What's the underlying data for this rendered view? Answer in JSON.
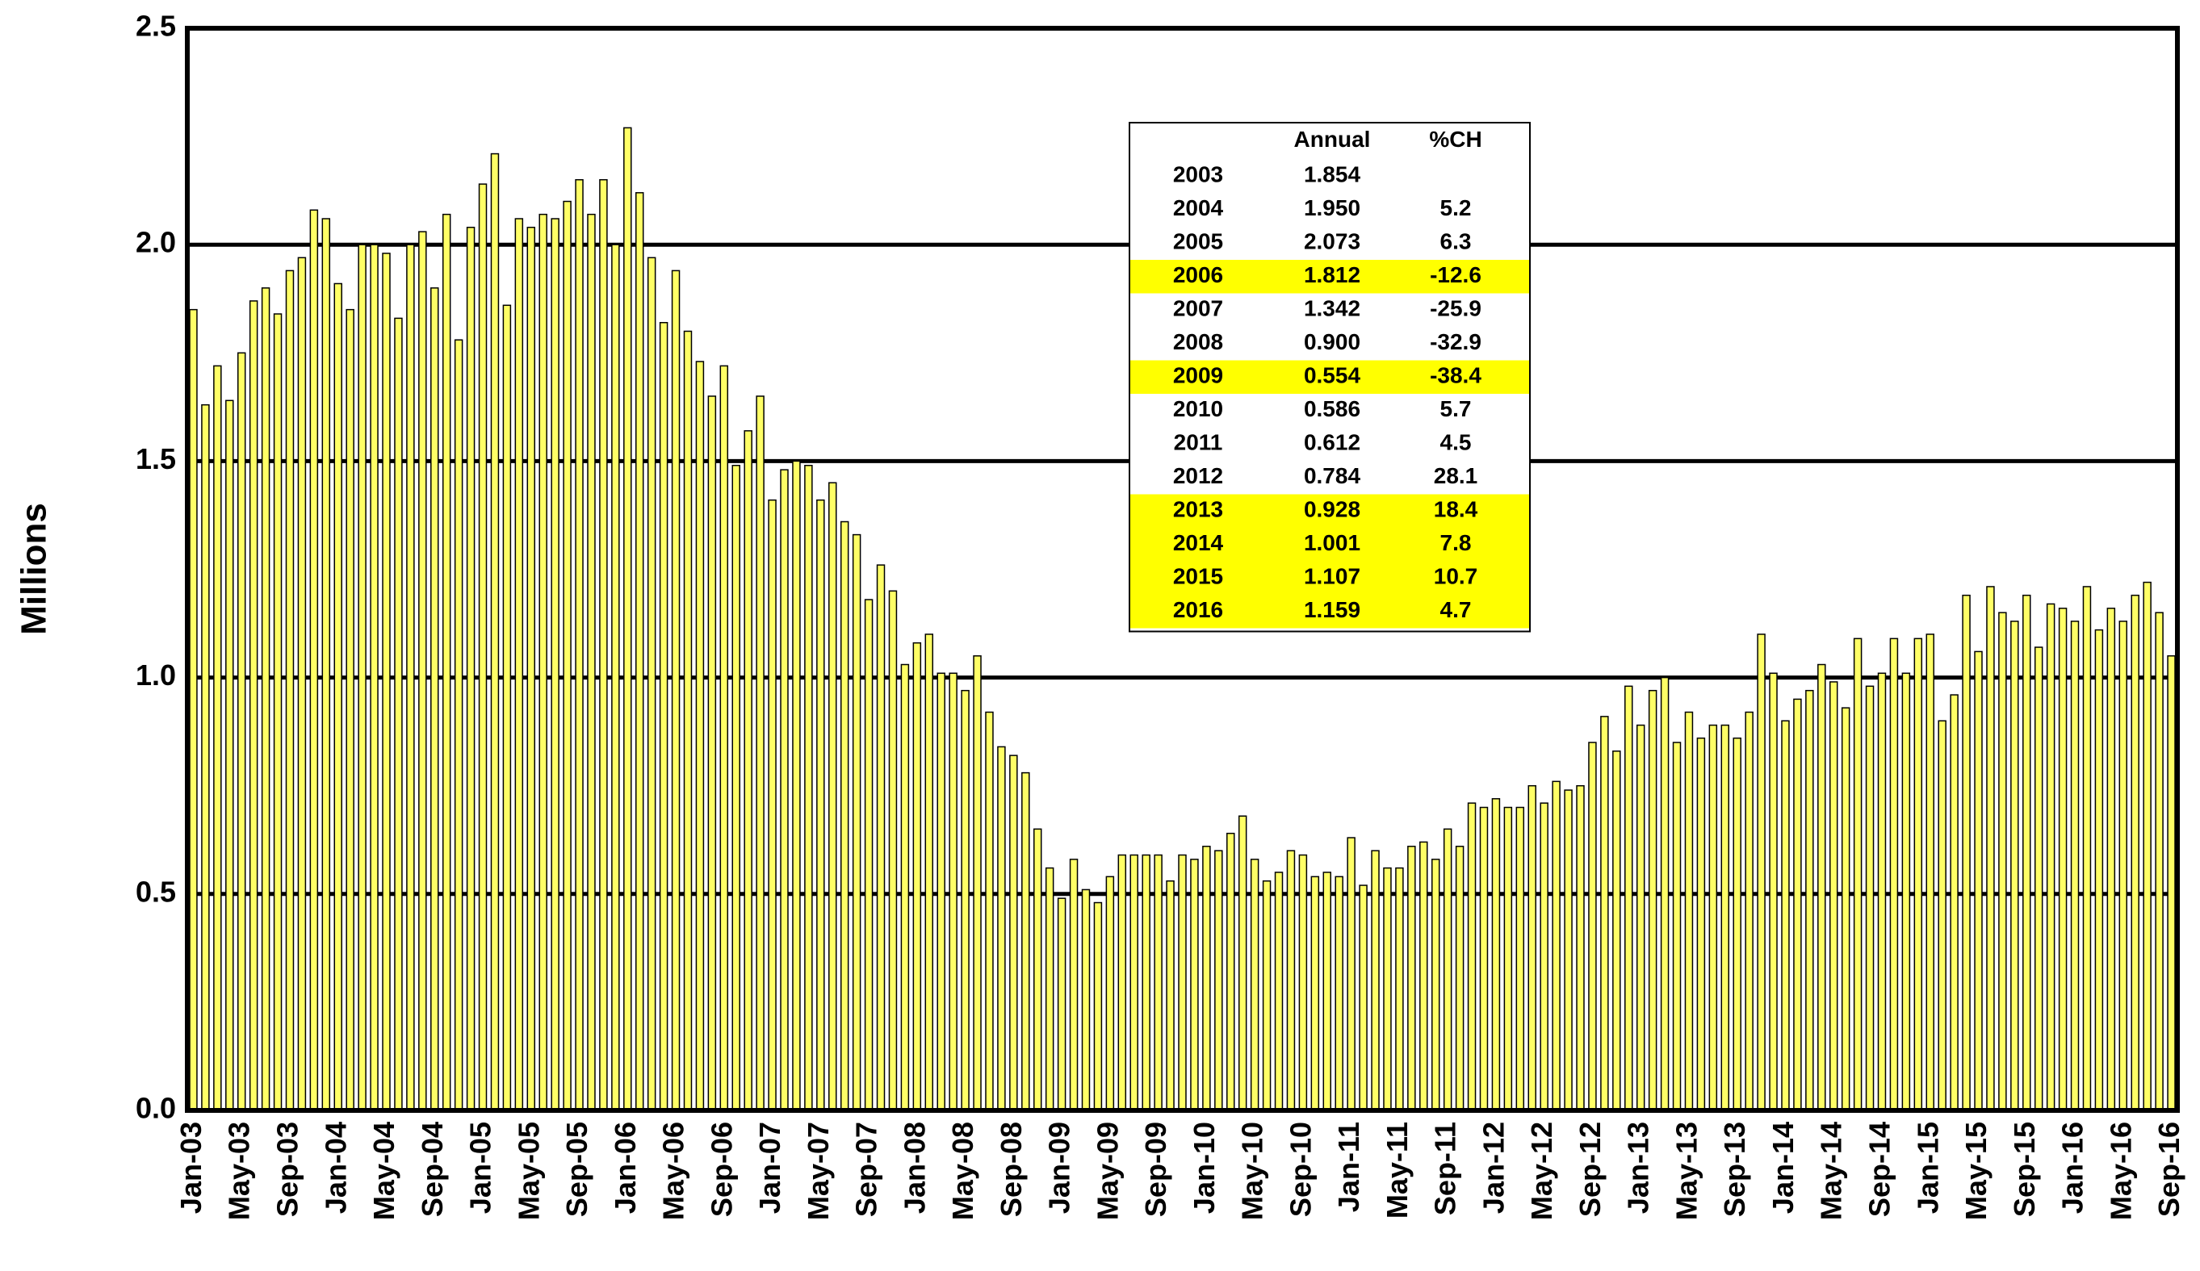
{
  "chart_data": {
    "type": "bar",
    "y_label": "Millions",
    "color": "#ffff66",
    "edge_color": "#000000",
    "grid": true,
    "ylim": [
      0,
      2.5
    ],
    "yticks": [
      {
        "value": 0,
        "label": "0.0"
      },
      {
        "value": 0.5,
        "label": "0.5"
      },
      {
        "value": 1,
        "label": "1.0"
      },
      {
        "value": 1.5,
        "label": "1.5"
      },
      {
        "value": 2,
        "label": "2.0"
      },
      {
        "value": 2.5,
        "label": "2.5"
      }
    ],
    "categories": [
      "Jan-03",
      null,
      null,
      null,
      "May-03",
      null,
      null,
      null,
      "Sep-03",
      null,
      null,
      null,
      "Jan-04",
      null,
      null,
      null,
      "May-04",
      null,
      null,
      null,
      "Sep-04",
      null,
      null,
      null,
      "Jan-05",
      null,
      null,
      null,
      "May-05",
      null,
      null,
      null,
      "Sep-05",
      null,
      null,
      null,
      "Jan-06",
      null,
      null,
      null,
      "May-06",
      null,
      null,
      null,
      "Sep-06",
      null,
      null,
      null,
      "Jan-07",
      null,
      null,
      null,
      "May-07",
      null,
      null,
      null,
      "Sep-07",
      null,
      null,
      null,
      "Jan-08",
      null,
      null,
      null,
      "May-08",
      null,
      null,
      null,
      "Sep-08",
      null,
      null,
      null,
      "Jan-09",
      null,
      null,
      null,
      "May-09",
      null,
      null,
      null,
      "Sep-09",
      null,
      null,
      null,
      "Jan-10",
      null,
      null,
      null,
      "May-10",
      null,
      null,
      null,
      "Sep-10",
      null,
      null,
      null,
      "Jan-11",
      null,
      null,
      null,
      "May-11",
      null,
      null,
      null,
      "Sep-11",
      null,
      null,
      null,
      "Jan-12",
      null,
      null,
      null,
      "May-12",
      null,
      null,
      null,
      "Sep-12",
      null,
      null,
      null,
      "Jan-13",
      null,
      null,
      null,
      "May-13",
      null,
      null,
      null,
      "Sep-13",
      null,
      null,
      null,
      "Jan-14",
      null,
      null,
      null,
      "May-14",
      null,
      null,
      null,
      "Sep-14",
      null,
      null,
      null,
      "Jan-15",
      null,
      null,
      null,
      "May-15",
      null,
      null,
      null,
      "Sep-15",
      null,
      null,
      null,
      "Jan-16",
      null,
      null,
      null,
      "May-16",
      null,
      null,
      null,
      "Sep-16"
    ],
    "values": [
      1.85,
      1.63,
      1.72,
      1.64,
      1.75,
      1.87,
      1.9,
      1.84,
      1.94,
      1.97,
      2.08,
      2.06,
      1.91,
      1.85,
      2.0,
      2.0,
      1.98,
      1.83,
      2.0,
      2.03,
      1.9,
      2.07,
      1.78,
      2.04,
      2.14,
      2.21,
      1.86,
      2.06,
      2.04,
      2.07,
      2.06,
      2.1,
      2.15,
      2.07,
      2.15,
      2.0,
      2.27,
      2.12,
      1.97,
      1.82,
      1.94,
      1.8,
      1.73,
      1.65,
      1.72,
      1.49,
      1.57,
      1.65,
      1.41,
      1.48,
      1.5,
      1.49,
      1.41,
      1.45,
      1.36,
      1.33,
      1.18,
      1.26,
      1.2,
      1.03,
      1.08,
      1.1,
      1.01,
      1.01,
      0.97,
      1.05,
      0.92,
      0.84,
      0.82,
      0.78,
      0.65,
      0.56,
      0.49,
      0.58,
      0.51,
      0.48,
      0.54,
      0.59,
      0.59,
      0.59,
      0.59,
      0.53,
      0.59,
      0.58,
      0.61,
      0.6,
      0.64,
      0.68,
      0.58,
      0.53,
      0.55,
      0.6,
      0.59,
      0.54,
      0.55,
      0.54,
      0.63,
      0.52,
      0.6,
      0.56,
      0.56,
      0.61,
      0.62,
      0.58,
      0.65,
      0.61,
      0.71,
      0.7,
      0.72,
      0.7,
      0.7,
      0.75,
      0.71,
      0.76,
      0.74,
      0.75,
      0.85,
      0.91,
      0.83,
      0.98,
      0.89,
      0.97,
      1.0,
      0.85,
      0.92,
      0.86,
      0.89,
      0.89,
      0.86,
      0.92,
      1.1,
      1.01,
      0.9,
      0.95,
      0.97,
      1.03,
      0.99,
      0.93,
      1.09,
      0.98,
      1.01,
      1.09,
      1.01,
      1.09,
      1.1,
      0.9,
      0.96,
      1.19,
      1.06,
      1.21,
      1.15,
      1.13,
      1.19,
      1.07,
      1.17,
      1.16,
      1.13,
      1.21,
      1.11,
      1.16,
      1.13,
      1.19,
      1.22,
      1.15,
      1.05
    ],
    "table": {
      "highlight_color": "#ffff00",
      "columns": [
        "Annual",
        "%CH"
      ],
      "rows": [
        {
          "year": "2003",
          "annual": "1.854",
          "highlight": false
        },
        {
          "year": "2004",
          "annual": "1.950",
          "pct": "5.2",
          "highlight": false
        },
        {
          "year": "2005",
          "annual": "2.073",
          "pct": "6.3",
          "highlight": false
        },
        {
          "year": "2006",
          "annual": "1.812",
          "pct": "-12.6",
          "highlight": true
        },
        {
          "year": "2007",
          "annual": "1.342",
          "pct": "-25.9",
          "highlight": false
        },
        {
          "year": "2008",
          "annual": "0.900",
          "pct": "-32.9",
          "highlight": false
        },
        {
          "year": "2009",
          "annual": "0.554",
          "pct": "-38.4",
          "highlight": true
        },
        {
          "year": "2010",
          "annual": "0.586",
          "pct": "5.7",
          "highlight": false
        },
        {
          "year": "2011",
          "annual": "0.612",
          "pct": "4.5",
          "highlight": false
        },
        {
          "year": "2012",
          "annual": "0.784",
          "pct": "28.1",
          "highlight": false
        },
        {
          "year": "2013",
          "annual": "0.928",
          "pct": "18.4",
          "highlight": true
        },
        {
          "year": "2014",
          "annual": "1.001",
          "pct": "7.8",
          "highlight": true
        },
        {
          "year": "2015",
          "annual": "1.107",
          "pct": "10.7",
          "highlight": true
        },
        {
          "year": "2016",
          "annual": "1.159",
          "pct": "4.7",
          "highlight": true
        }
      ]
    }
  }
}
